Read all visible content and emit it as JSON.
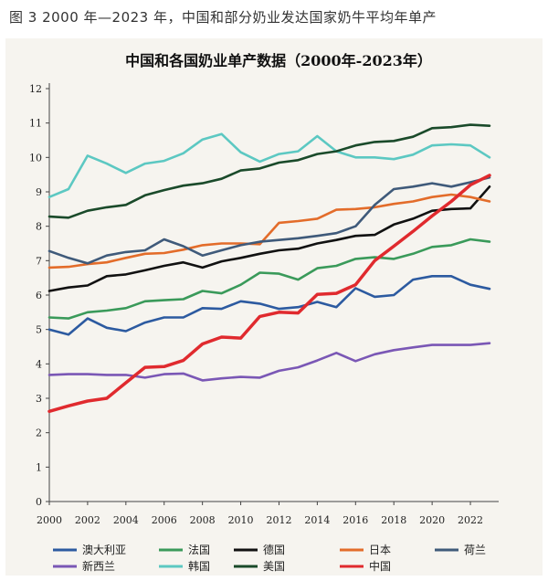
{
  "caption": "图 3  2000 年—2023 年，中国和部分奶业发达国家奶牛平均年单产",
  "chart_data": {
    "type": "line",
    "title": "中国和各国奶业单产数据（2000年-2023年）",
    "xlabel": "",
    "ylabel": "",
    "x": [
      2000,
      2001,
      2002,
      2003,
      2004,
      2005,
      2006,
      2007,
      2008,
      2009,
      2010,
      2011,
      2012,
      2013,
      2014,
      2015,
      2016,
      2017,
      2018,
      2019,
      2020,
      2021,
      2022,
      2023
    ],
    "xticks": [
      2000,
      2002,
      2004,
      2006,
      2008,
      2010,
      2012,
      2014,
      2016,
      2018,
      2020,
      2022
    ],
    "yticks": [
      0,
      1,
      2,
      3,
      4,
      5,
      6,
      7,
      8,
      9,
      10,
      11,
      12
    ],
    "ylim": [
      0,
      12
    ],
    "xlim": [
      2000,
      2023
    ],
    "grid": false,
    "legend_position": "bottom",
    "series": [
      {
        "name": "澳大利亚",
        "color": "#2c5aa0",
        "values": [
          5.0,
          4.85,
          5.32,
          5.05,
          4.95,
          5.2,
          5.35,
          5.35,
          5.62,
          5.6,
          5.82,
          5.75,
          5.6,
          5.65,
          5.8,
          5.65,
          6.2,
          5.95,
          6.0,
          6.45,
          6.55,
          6.55,
          6.3,
          6.18
        ]
      },
      {
        "name": "法国",
        "color": "#3a9a5a",
        "values": [
          5.35,
          5.32,
          5.5,
          5.55,
          5.62,
          5.82,
          5.85,
          5.88,
          6.12,
          6.05,
          6.3,
          6.65,
          6.62,
          6.45,
          6.78,
          6.85,
          7.05,
          7.1,
          7.05,
          7.2,
          7.4,
          7.45,
          7.62,
          7.55
        ]
      },
      {
        "name": "德国",
        "color": "#111111",
        "values": [
          6.12,
          6.22,
          6.28,
          6.55,
          6.6,
          6.72,
          6.85,
          6.95,
          6.8,
          6.98,
          7.08,
          7.2,
          7.3,
          7.35,
          7.5,
          7.6,
          7.72,
          7.75,
          8.05,
          8.22,
          8.45,
          8.5,
          8.52,
          9.15
        ]
      },
      {
        "name": "日本",
        "color": "#e36c2a",
        "values": [
          6.8,
          6.82,
          6.9,
          6.95,
          7.08,
          7.2,
          7.22,
          7.32,
          7.45,
          7.5,
          7.5,
          7.48,
          8.1,
          8.15,
          8.22,
          8.48,
          8.5,
          8.55,
          8.65,
          8.72,
          8.85,
          8.92,
          8.85,
          8.72
        ]
      },
      {
        "name": "荷兰",
        "color": "#3f5a7a",
        "values": [
          7.28,
          7.08,
          6.92,
          7.15,
          7.25,
          7.3,
          7.62,
          7.42,
          7.15,
          7.3,
          7.45,
          7.55,
          7.6,
          7.65,
          7.72,
          7.8,
          8.0,
          8.62,
          9.08,
          9.15,
          9.25,
          9.15,
          9.28,
          9.42
        ]
      },
      {
        "name": "新西兰",
        "color": "#7a57b5",
        "values": [
          3.68,
          3.7,
          3.7,
          3.68,
          3.68,
          3.6,
          3.7,
          3.72,
          3.52,
          3.58,
          3.62,
          3.6,
          3.8,
          3.9,
          4.1,
          4.32,
          4.08,
          4.28,
          4.4,
          4.48,
          4.55,
          4.55,
          4.55,
          4.6
        ]
      },
      {
        "name": "韩国",
        "color": "#5cc8c2",
        "values": [
          8.85,
          9.08,
          10.05,
          9.82,
          9.55,
          9.82,
          9.9,
          10.12,
          10.52,
          10.68,
          10.15,
          9.88,
          10.1,
          10.18,
          10.62,
          10.18,
          10.0,
          10.0,
          9.95,
          10.08,
          10.35,
          10.38,
          10.35,
          10.0
        ]
      },
      {
        "name": "美国",
        "color": "#1a4a2a",
        "values": [
          8.28,
          8.25,
          8.45,
          8.55,
          8.62,
          8.9,
          9.05,
          9.18,
          9.25,
          9.38,
          9.62,
          9.68,
          9.85,
          9.92,
          10.1,
          10.18,
          10.35,
          10.45,
          10.48,
          10.6,
          10.85,
          10.88,
          10.95,
          10.92
        ]
      },
      {
        "name": "中国",
        "color": "#e02a2e",
        "values": [
          2.62,
          2.78,
          2.92,
          3.0,
          3.45,
          3.9,
          3.92,
          4.1,
          4.58,
          4.78,
          4.75,
          5.38,
          5.5,
          5.48,
          6.02,
          6.05,
          6.3,
          7.0,
          7.42,
          7.85,
          8.3,
          8.72,
          9.2,
          9.48
        ]
      }
    ]
  }
}
